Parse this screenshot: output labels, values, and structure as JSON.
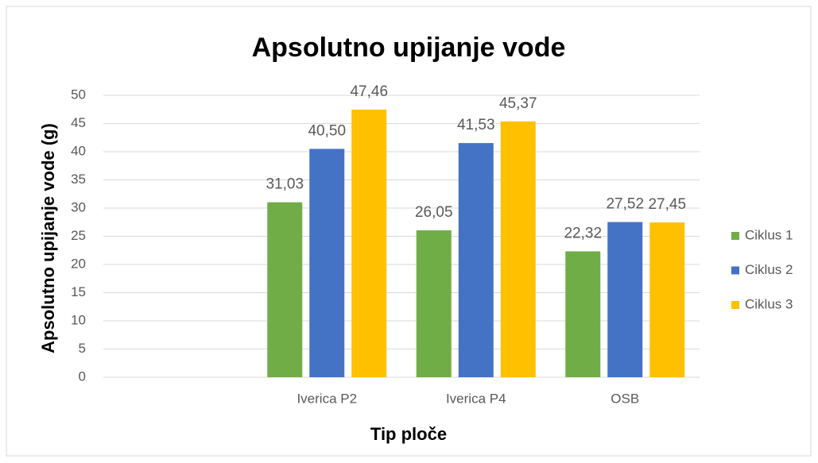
{
  "chart_data": {
    "type": "bar",
    "title": "Apsolutno upijanje vode",
    "x_label": "Tip ploče",
    "y_label": "Apsolutno upijanje vode (g)",
    "categories": [
      null,
      "Iverica P2",
      "Iverica P4",
      "OSB"
    ],
    "series": [
      {
        "name": "Ciklus 1",
        "color": "#70ad47",
        "values": [
          null,
          31.03,
          26.05,
          22.32
        ],
        "value_labels": [
          null,
          "31,03",
          "26,05",
          "22,32"
        ]
      },
      {
        "name": "Ciklus 2",
        "color": "#4472c4",
        "values": [
          null,
          40.5,
          41.53,
          27.52
        ],
        "value_labels": [
          null,
          "40,50",
          "41,53",
          "27,52"
        ]
      },
      {
        "name": "Ciklus 3",
        "color": "#ffc000",
        "values": [
          null,
          47.46,
          45.37,
          27.45
        ],
        "value_labels": [
          null,
          "47,46",
          "45,37",
          "27,45"
        ]
      }
    ],
    "ylim": [
      0,
      50
    ],
    "yticks": [
      0,
      5,
      10,
      15,
      20,
      25,
      30,
      35,
      40,
      45,
      50
    ],
    "grid": true,
    "legend": "right"
  }
}
